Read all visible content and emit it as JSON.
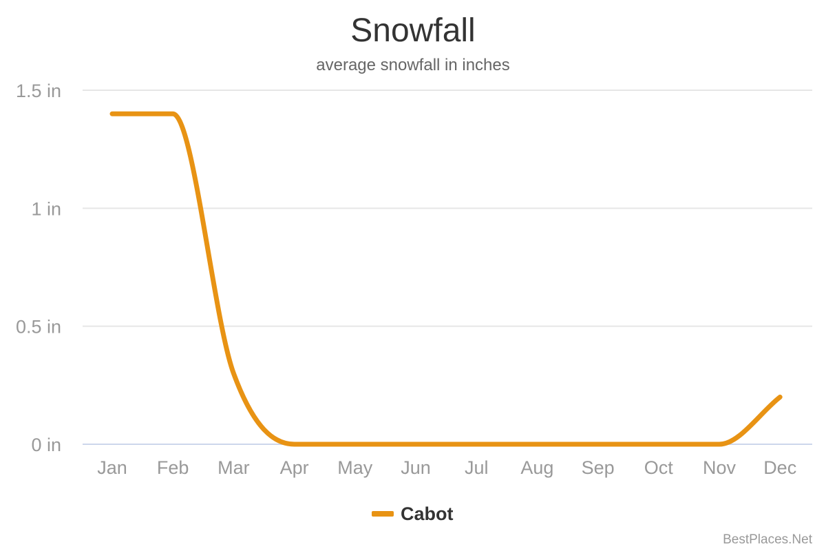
{
  "chart_data": {
    "type": "line",
    "title": "Snowfall",
    "subtitle": "average snowfall in inches",
    "categories": [
      "Jan",
      "Feb",
      "Mar",
      "Apr",
      "May",
      "Jun",
      "Jul",
      "Aug",
      "Sep",
      "Oct",
      "Nov",
      "Dec"
    ],
    "series": [
      {
        "name": "Cabot",
        "color": "#e89314",
        "values": [
          1.4,
          1.4,
          0.3,
          0,
          0,
          0,
          0,
          0,
          0,
          0,
          0,
          0.2
        ]
      }
    ],
    "ylim": [
      0,
      1.5
    ],
    "yticks": [
      {
        "value": 0,
        "label": "0 in"
      },
      {
        "value": 0.5,
        "label": "0.5 in"
      },
      {
        "value": 1,
        "label": "1 in"
      },
      {
        "value": 1.5,
        "label": "1.5 in"
      }
    ],
    "grid": true,
    "legend_position": "bottom-center",
    "credit": "BestPlaces.Net"
  }
}
